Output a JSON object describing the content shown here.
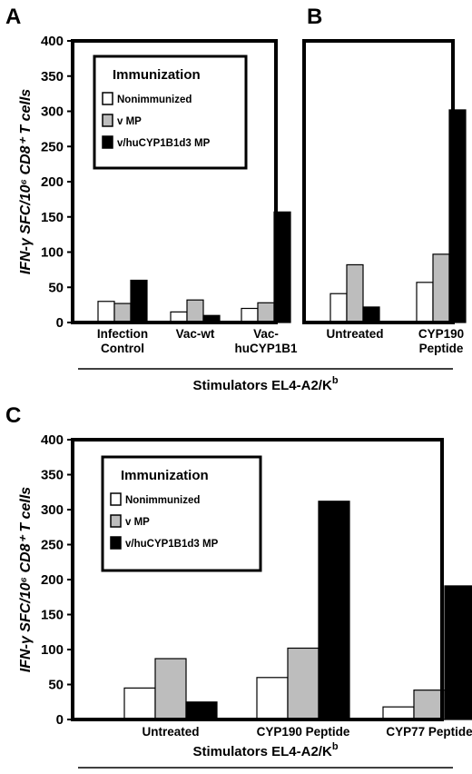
{
  "series_colors": [
    "#ffffff",
    "#bdbdbd",
    "#000000"
  ],
  "chart_data": [
    {
      "type": "bar",
      "panel": "A",
      "ylabel": "IFN-γ SFC/10⁶ CD8⁺ T cells",
      "ylim": [
        0,
        400
      ],
      "yticks": [
        "0",
        "50",
        "100",
        "150",
        "200",
        "250",
        "300",
        "350",
        "400"
      ],
      "categories": [
        [
          "Infection",
          "Control"
        ],
        [
          "Vac-wt"
        ],
        [
          "Vac-",
          "huCYP1B1"
        ]
      ],
      "legend": {
        "title": "Immunization",
        "items": [
          "Nonimmunized",
          "v MP",
          "v/huCYP1B1d3 MP"
        ]
      },
      "series": [
        {
          "name": "Nonimmunized",
          "values": [
            30,
            15,
            20
          ]
        },
        {
          "name": "v MP",
          "values": [
            27,
            32,
            28
          ]
        },
        {
          "name": "v/huCYP1B1d3 MP",
          "values": [
            60,
            10,
            157
          ]
        }
      ]
    },
    {
      "type": "bar",
      "panel": "B",
      "ylim": [
        0,
        400
      ],
      "categories": [
        [
          "Untreated"
        ],
        [
          "CYP190",
          "Peptide"
        ]
      ],
      "series": [
        {
          "name": "Nonimmunized",
          "values": [
            41,
            57
          ]
        },
        {
          "name": "v MP",
          "values": [
            82,
            97
          ]
        },
        {
          "name": "v/huCYP1B1d3 MP",
          "values": [
            22,
            302
          ]
        }
      ]
    },
    {
      "type": "bar",
      "panel": "C",
      "ylabel": "IFN-γ SFC/10⁶ CD8⁺ T cells",
      "ylim": [
        0,
        400
      ],
      "yticks": [
        "0",
        "50",
        "100",
        "150",
        "200",
        "250",
        "300",
        "350",
        "400"
      ],
      "categories": [
        [
          "Untreated"
        ],
        [
          "CYP190 Peptide"
        ],
        [
          "CYP77 Peptide"
        ]
      ],
      "legend": {
        "title": "Immunization",
        "items": [
          "Nonimmunized",
          "v MP",
          "v/huCYP1B1d3 MP"
        ]
      },
      "series": [
        {
          "name": "Nonimmunized",
          "values": [
            45,
            60,
            18
          ]
        },
        {
          "name": "v MP",
          "values": [
            87,
            102,
            42
          ]
        },
        {
          "name": "v/huCYP1B1d3 MP",
          "values": [
            25,
            312,
            191
          ]
        }
      ]
    }
  ],
  "stimulators_label": "Stimulators  EL4-A2/K",
  "stimulators_sup": "b"
}
